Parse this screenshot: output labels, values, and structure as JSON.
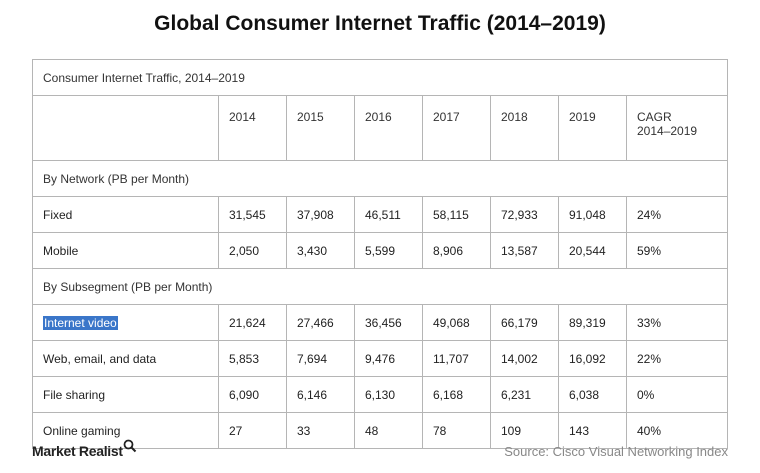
{
  "title": "Global Consumer Internet Traffic (2014–2019)",
  "chart_data": {
    "type": "table",
    "caption": "Consumer Internet Traffic, 2014–2019",
    "columns": [
      "2014",
      "2015",
      "2016",
      "2017",
      "2018",
      "2019"
    ],
    "cagr_header_line1": "CAGR",
    "cagr_header_line2": "2014–2019",
    "sections": [
      {
        "label": "By Network (PB per Month)",
        "rows": [
          {
            "name": "Fixed",
            "values": [
              "31,545",
              "37,908",
              "46,511",
              "58,115",
              "72,933",
              "91,048"
            ],
            "cagr": "24%"
          },
          {
            "name": "Mobile",
            "values": [
              "2,050",
              "3,430",
              "5,599",
              "8,906",
              "13,587",
              "20,544"
            ],
            "cagr": "59%"
          }
        ]
      },
      {
        "label": "By Subsegment (PB per Month)",
        "rows": [
          {
            "name": "Internet video",
            "values": [
              "21,624",
              "27,466",
              "36,456",
              "49,068",
              "66,179",
              "89,319"
            ],
            "cagr": "33%",
            "highlighted": true
          },
          {
            "name": "Web, email, and data",
            "values": [
              "5,853",
              "7,694",
              "9,476",
              "11,707",
              "14,002",
              "16,092"
            ],
            "cagr": "22%"
          },
          {
            "name": "File sharing",
            "values": [
              "6,090",
              "6,146",
              "6,130",
              "6,168",
              "6,231",
              "6,038"
            ],
            "cagr": "0%"
          },
          {
            "name": "Online gaming",
            "values": [
              "27",
              "33",
              "48",
              "78",
              "109",
              "143"
            ],
            "cagr": "40%"
          }
        ]
      }
    ]
  },
  "footer": {
    "brand": "Market Realist",
    "source": "Source:  Cisco Visual Networking Index"
  },
  "colors": {
    "highlight": "#3a76c9",
    "border": "#b5b5b5"
  },
  "icons": {
    "brand_mark": "magnifier-icon"
  }
}
